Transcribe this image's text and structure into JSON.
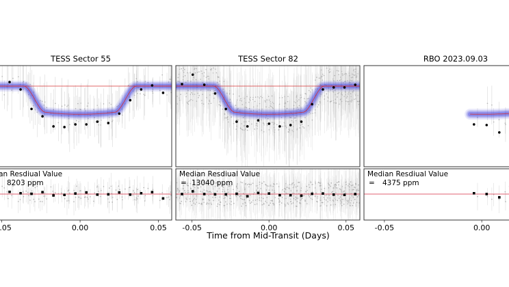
{
  "figure": {
    "xlabel": "Time from Mid-Transit (Days)",
    "residual_label": "Median Resdiual Value"
  },
  "chart_data": [
    {
      "type": "scatter",
      "title": "TESS Sector 55",
      "xlabel": "",
      "ylabel": "",
      "x_ticks": [
        -0.05,
        0.0,
        0.05
      ],
      "x_tick_labels": [
        "-0.05",
        "0.00",
        "0.05"
      ],
      "xlim": [
        -0.0555,
        0.0585
      ],
      "model": {
        "baseline": 1.0,
        "depth": 0.42,
        "t14_half": 0.036,
        "t23_half": 0.022,
        "color": "#d62728",
        "band_color": "#4a4adf"
      },
      "binned_x": [
        -0.052,
        -0.045,
        -0.038,
        -0.031,
        -0.024,
        -0.017,
        -0.01,
        -0.003,
        0.004,
        0.011,
        0.018,
        0.025,
        0.032,
        0.039,
        0.046,
        0.053
      ],
      "binned_y": [
        1.07,
        1.06,
        0.95,
        0.66,
        0.55,
        0.4,
        0.39,
        0.43,
        0.43,
        0.47,
        0.45,
        0.59,
        0.79,
        0.95,
        1.01,
        0.9
      ],
      "residual": {
        "text": "8203 ppm",
        "prefix": "=",
        "binned_y": [
          0.1,
          0.08,
          0.03,
          0.01,
          0.07,
          -0.05,
          -0.03,
          0.02,
          0.06,
          -0.02,
          -0.01,
          0.06,
          -0.02,
          0.03,
          0.07,
          -0.16
        ]
      }
    },
    {
      "type": "scatter",
      "title": "TESS Sector 82",
      "xlabel": "Time from Mid-Transit (Days)",
      "ylabel": "",
      "x_ticks": [
        -0.05,
        0.0,
        0.05
      ],
      "x_tick_labels": [
        "-0.05",
        "0.00",
        "0.05"
      ],
      "xlim": [
        -0.0605,
        0.059
      ],
      "model": {
        "baseline": 1.0,
        "depth": 0.42,
        "t14_half": 0.036,
        "t23_half": 0.022,
        "color": "#d62728",
        "band_color": "#4a4adf"
      },
      "binned_x": [
        -0.0565,
        -0.0495,
        -0.042,
        -0.035,
        -0.028,
        -0.021,
        -0.014,
        -0.007,
        0.0,
        0.007,
        0.014,
        0.021,
        0.028,
        0.035,
        0.042,
        0.049,
        0.056
      ],
      "binned_y": [
        1.03,
        1.17,
        1.02,
        0.89,
        0.66,
        0.47,
        0.4,
        0.49,
        0.44,
        0.4,
        0.42,
        0.47,
        0.73,
        0.95,
        0.98,
        0.98,
        1.02
      ],
      "residual": {
        "text": "13040 ppm",
        "prefix": "=",
        "binned_y": [
          0.0,
          0.1,
          0.0,
          -0.01,
          -0.01,
          0.01,
          -0.08,
          0.04,
          0.02,
          -0.04,
          -0.04,
          -0.06,
          0.01,
          0.02,
          -0.02,
          -0.03,
          0.0
        ]
      }
    },
    {
      "type": "scatter",
      "title": "RBO 2023.09.03",
      "xlabel": "",
      "ylabel": "",
      "x_ticks": [
        -0.05,
        0.0
      ],
      "x_tick_labels": [
        "-0.05",
        "0.00"
      ],
      "xlim": [
        -0.0605,
        0.0175
      ],
      "model": {
        "baseline": 1.0,
        "depth": 0.42,
        "t14_half": 0.036,
        "t23_half": 0.022,
        "color": "#d62728",
        "band_color": "#4a4adf"
      },
      "binned_x": [
        -0.004,
        0.0025,
        0.009,
        0.0155,
        0.022,
        0.0285
      ],
      "binned_y": [
        0.43,
        0.42,
        0.31,
        0.51,
        0.67,
        0.92
      ],
      "residual": {
        "text": "4375 ppm",
        "prefix": "=",
        "binned_y": [
          0.03,
          0.0,
          -0.12,
          0.04,
          0.01,
          0.0
        ]
      }
    }
  ]
}
